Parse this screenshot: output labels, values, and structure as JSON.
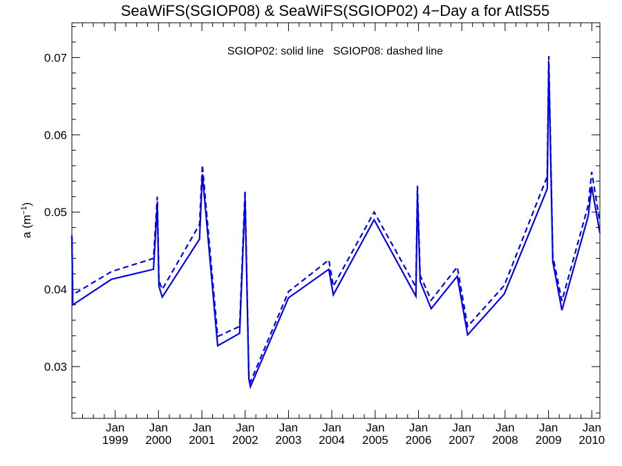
{
  "chart_data": {
    "type": "line",
    "title": "SeaWiFS(SGIOP08) & SeaWiFS(SGIOP02) 4−Day a for AtlS55",
    "legend_note": "SGIOP02: solid line   SGIOP08: dashed line",
    "ylabel_main": "a (m",
    "ylabel_sup": "−1",
    "ylabel_close": ")",
    "ylim": [
      0.0233,
      0.0745
    ],
    "xlim": [
      "1998-01-01",
      "2010-03-10"
    ],
    "grid": false,
    "y_ticks": [
      {
        "value": 0.03,
        "label": "0.03"
      },
      {
        "value": 0.04,
        "label": "0.04"
      },
      {
        "value": 0.05,
        "label": "0.05"
      },
      {
        "value": 0.06,
        "label": "0.06"
      },
      {
        "value": 0.07,
        "label": "0.07"
      }
    ],
    "x_ticks": [
      {
        "date": "1999-01-01",
        "month": "Jan",
        "year": "1999"
      },
      {
        "date": "2000-01-01",
        "month": "Jan",
        "year": "2000"
      },
      {
        "date": "2001-01-01",
        "month": "Jan",
        "year": "2001"
      },
      {
        "date": "2002-01-01",
        "month": "Jan",
        "year": "2002"
      },
      {
        "date": "2003-01-01",
        "month": "Jan",
        "year": "2003"
      },
      {
        "date": "2004-01-01",
        "month": "Jan",
        "year": "2004"
      },
      {
        "date": "2005-01-01",
        "month": "Jan",
        "year": "2005"
      },
      {
        "date": "2006-01-01",
        "month": "Jan",
        "year": "2006"
      },
      {
        "date": "2007-01-01",
        "month": "Jan",
        "year": "2007"
      },
      {
        "date": "2008-01-01",
        "month": "Jan",
        "year": "2008"
      },
      {
        "date": "2009-01-01",
        "month": "Jan",
        "year": "2009"
      },
      {
        "date": "2010-01-01",
        "month": "Jan",
        "year": "2010"
      }
    ],
    "series": [
      {
        "name": "SGIOP02",
        "style": "solid",
        "color": "#0000ee",
        "points": [
          [
            "1998-01-01",
            0.0467
          ],
          [
            "1998-01-09",
            0.038
          ],
          [
            "1998-12-01",
            0.0413
          ],
          [
            "1999-11-20",
            0.0426
          ],
          [
            "1999-12-22",
            0.051
          ],
          [
            "2000-01-05",
            0.0404
          ],
          [
            "2000-02-02",
            0.039
          ],
          [
            "2000-12-12",
            0.0465
          ],
          [
            "2001-01-05",
            0.0549
          ],
          [
            "2001-05-14",
            0.0327
          ],
          [
            "2001-11-15",
            0.0343
          ],
          [
            "2001-12-31",
            0.0518
          ],
          [
            "2002-02-01",
            0.0284
          ],
          [
            "2002-02-14",
            0.0274
          ],
          [
            "2003-01-01",
            0.0389
          ],
          [
            "2003-12-07",
            0.0426
          ],
          [
            "2004-01-14",
            0.0393
          ],
          [
            "2004-12-23",
            0.049
          ],
          [
            "2005-12-10",
            0.0391
          ],
          [
            "2005-12-23",
            0.0523
          ],
          [
            "2006-01-15",
            0.041
          ],
          [
            "2006-04-18",
            0.0375
          ],
          [
            "2006-11-24",
            0.0417
          ],
          [
            "2007-02-19",
            0.0341
          ],
          [
            "2007-12-25",
            0.0394
          ],
          [
            "2008-12-21",
            0.053
          ],
          [
            "2009-01-03",
            0.0689
          ],
          [
            "2009-02-06",
            0.0436
          ],
          [
            "2009-04-24",
            0.0373
          ],
          [
            "2009-12-02",
            0.0495
          ],
          [
            "2009-12-31",
            0.0533
          ],
          [
            "2010-03-10",
            0.0473
          ]
        ]
      },
      {
        "name": "SGIOP08",
        "style": "dashed",
        "color": "#0000ee",
        "points": [
          [
            "1998-01-01",
            0.047
          ],
          [
            "1998-01-09",
            0.0393
          ],
          [
            "1998-12-01",
            0.0423
          ],
          [
            "1999-11-20",
            0.044
          ],
          [
            "1999-12-22",
            0.052
          ],
          [
            "2000-01-05",
            0.0411
          ],
          [
            "2000-02-02",
            0.04
          ],
          [
            "2000-12-12",
            0.0484
          ],
          [
            "2001-01-05",
            0.0561
          ],
          [
            "2001-05-14",
            0.0339
          ],
          [
            "2001-11-15",
            0.0352
          ],
          [
            "2001-12-31",
            0.0528
          ],
          [
            "2002-02-01",
            0.0287
          ],
          [
            "2002-02-14",
            0.028
          ],
          [
            "2003-01-01",
            0.0397
          ],
          [
            "2003-12-07",
            0.0438
          ],
          [
            "2004-01-14",
            0.0404
          ],
          [
            "2004-12-23",
            0.05
          ],
          [
            "2005-12-10",
            0.0403
          ],
          [
            "2005-12-23",
            0.0534
          ],
          [
            "2006-01-15",
            0.0418
          ],
          [
            "2006-04-18",
            0.0386
          ],
          [
            "2006-11-24",
            0.0429
          ],
          [
            "2007-02-19",
            0.0352
          ],
          [
            "2007-12-25",
            0.0405
          ],
          [
            "2008-12-21",
            0.0546
          ],
          [
            "2009-01-03",
            0.0702
          ],
          [
            "2009-02-06",
            0.0443
          ],
          [
            "2009-04-24",
            0.0385
          ],
          [
            "2009-12-02",
            0.0509
          ],
          [
            "2009-12-31",
            0.0552
          ],
          [
            "2010-03-10",
            0.0487
          ]
        ]
      }
    ]
  }
}
